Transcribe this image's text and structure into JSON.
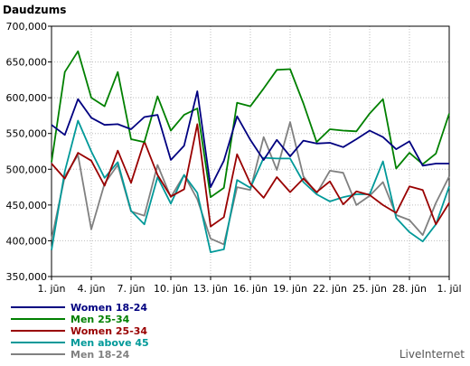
{
  "chart_data": {
    "type": "line",
    "ylabel": "Daudzums",
    "ylim": [
      350000,
      700000
    ],
    "yticks": [
      "350,000",
      "400,000",
      "450,000",
      "500,000",
      "550,000",
      "600,000",
      "650,000",
      "700,000"
    ],
    "x_labels": [
      "1. jūn",
      "4. jūn",
      "7. jūn",
      "10. jūn",
      "13. jūn",
      "16. jūn",
      "19. jūn",
      "22. jūn",
      "25. jūn",
      "28. jūn",
      "1. jūl"
    ],
    "grid": true,
    "series": [
      {
        "name": "Women 18-24",
        "color": "#000080",
        "values": [
          562000,
          548000,
          598000,
          572000,
          562000,
          563000,
          556000,
          573000,
          576000,
          513000,
          533000,
          609000,
          475000,
          512000,
          574000,
          541000,
          513000,
          541000,
          518000,
          540000,
          536000,
          537000,
          531000,
          542000,
          554000,
          545000,
          528000,
          539000,
          505000,
          508000,
          508000
        ]
      },
      {
        "name": "Men 25-34",
        "color": "#008000",
        "values": [
          510000,
          636000,
          665000,
          600000,
          588000,
          636000,
          542000,
          538000,
          602000,
          554000,
          576000,
          585000,
          461000,
          474000,
          593000,
          588000,
          613000,
          639000,
          640000,
          592000,
          538000,
          556000,
          554000,
          553000,
          578000,
          598000,
          501000,
          523000,
          507000,
          522000,
          578000
        ]
      },
      {
        "name": "Women 25-34",
        "color": "#990000",
        "values": [
          508000,
          487000,
          523000,
          512000,
          477000,
          526000,
          481000,
          539000,
          492000,
          462000,
          472000,
          563000,
          420000,
          433000,
          521000,
          480000,
          460000,
          489000,
          468000,
          487000,
          468000,
          483000,
          451000,
          469000,
          464000,
          450000,
          439000,
          476000,
          471000,
          423000,
          453000
        ]
      },
      {
        "name": "Men above 45",
        "color": "#009999",
        "values": [
          387000,
          497000,
          568000,
          525000,
          488000,
          510000,
          442000,
          423000,
          489000,
          452000,
          492000,
          467000,
          384000,
          388000,
          485000,
          474000,
          516000,
          515000,
          515000,
          482000,
          465000,
          455000,
          461000,
          465000,
          465000,
          511000,
          432000,
          412000,
          399000,
          423000,
          476000
        ]
      },
      {
        "name": "Men 18-24",
        "color": "#808080",
        "values": [
          402000,
          490000,
          520000,
          416000,
          480000,
          506000,
          441000,
          435000,
          506000,
          461000,
          492000,
          458000,
          403000,
          395000,
          475000,
          471000,
          545000,
          499000,
          566000,
          490000,
          466000,
          498000,
          495000,
          450000,
          463000,
          482000,
          436000,
          429000,
          408000,
          453000,
          490000
        ]
      }
    ]
  },
  "brand": "LiveInternet"
}
